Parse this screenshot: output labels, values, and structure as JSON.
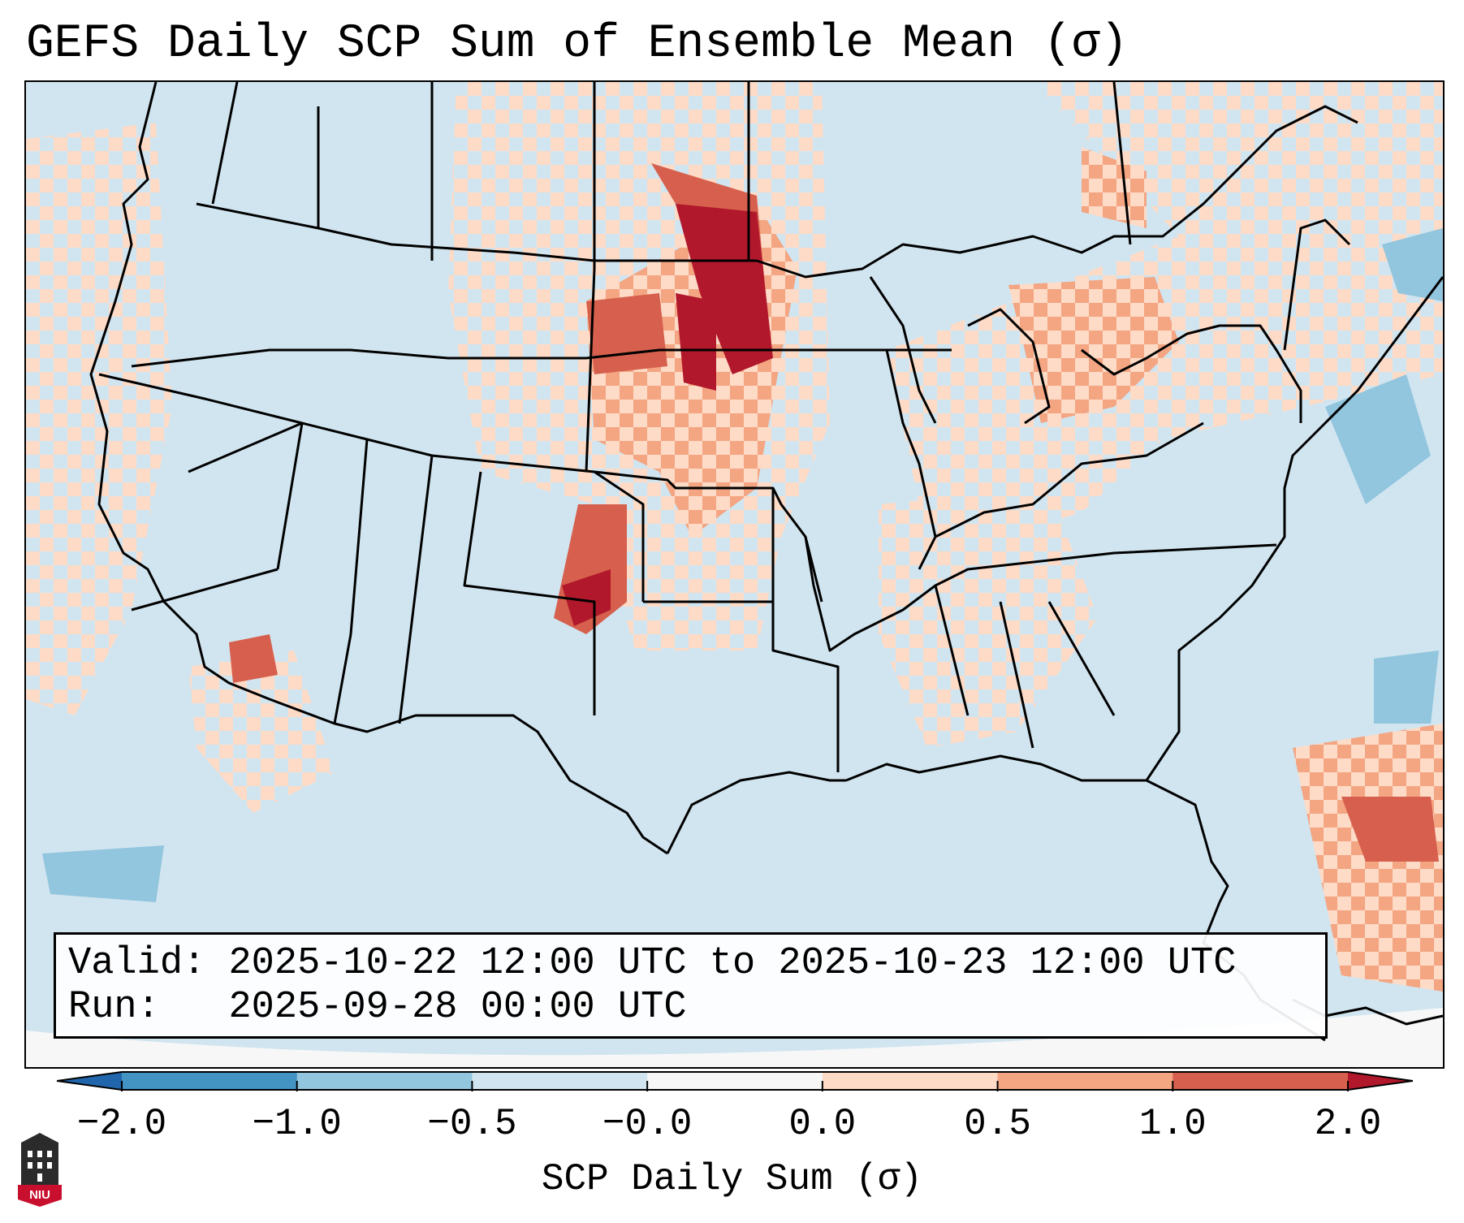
{
  "title": "GEFS Daily SCP Sum of Ensemble Mean (σ)",
  "info": {
    "valid_label": "Valid:",
    "valid_value": "2025-10-22 12:00 UTC to 2025-10-23 12:00 UTC",
    "run_label": "Run:",
    "run_value": "2025-09-28 00:00 UTC"
  },
  "colorbar": {
    "label": "SCP Daily Sum (σ)",
    "ticks": [
      "−2.0",
      "−1.0",
      "−0.5",
      "−0.0",
      "0.0",
      "0.5",
      "1.0",
      "2.0"
    ],
    "colors": [
      "#4393c3",
      "#92c5de",
      "#d1e5f0",
      "#f7f7f7",
      "#fddbc7",
      "#f4a582",
      "#d6604d"
    ],
    "under_color": "#2166ac",
    "over_color": "#b2182b"
  },
  "map": {
    "background_color": "#d1e5f0",
    "ocean_edge_color": "#f7f7f7",
    "border_color": "#000000"
  },
  "logo": {
    "text": "NIU",
    "color": "#c8102e"
  }
}
